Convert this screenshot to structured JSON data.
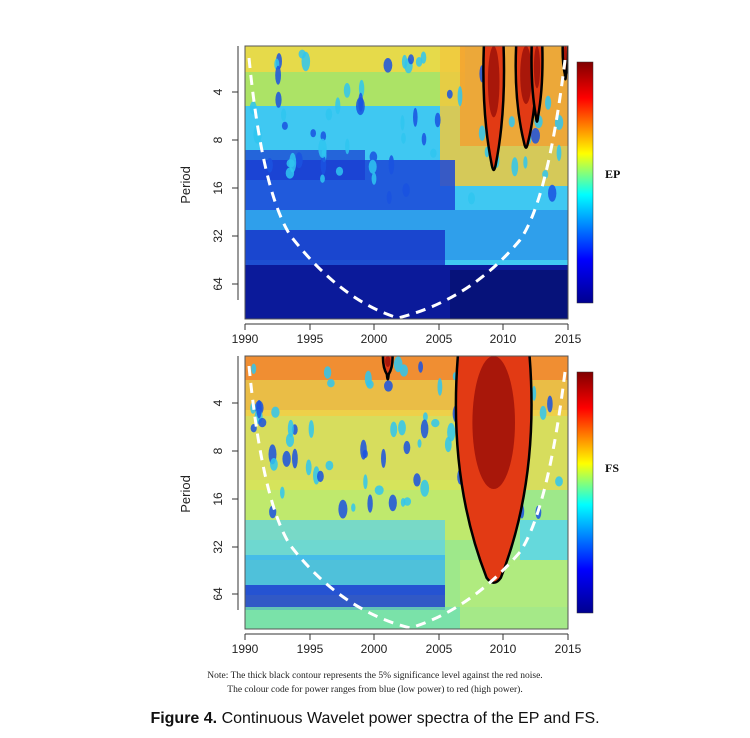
{
  "figure": {
    "caption_label": "Figure 4.",
    "caption_text": "Continuous Wavelet power spectra of the EP and FS.",
    "note_line1": "Note: The thick black contour represents the 5% significance level against the red noise.",
    "note_line2": "The colour code for power ranges from blue (low power) to red (high power)."
  },
  "chart_data": [
    {
      "type": "heatmap",
      "colorbar_label": "EP",
      "ylabel": "Period",
      "x_ticks": [
        "1990",
        "1995",
        "2000",
        "2005",
        "2010",
        "2015"
      ],
      "y_ticks": [
        "4",
        "8",
        "16",
        "32",
        "64"
      ],
      "xlim": [
        1990,
        2015
      ],
      "ylim_period": [
        2,
        100
      ],
      "y_scale": "log2",
      "colorscale": [
        "#00008f",
        "#0000ff",
        "#00ffff",
        "#ffff00",
        "#ff0000",
        "#800000"
      ],
      "cone_of_influence_style": "white dashed",
      "significance_contour": "black, 5% level",
      "high_power_regions": [
        {
          "x_start": 2008.5,
          "x_end": 2010,
          "period_min": 2,
          "period_max": 11
        },
        {
          "x_start": 2011,
          "x_end": 2012.5,
          "period_min": 2,
          "period_max": 8
        },
        {
          "x_start": 2012.2,
          "x_end": 2013,
          "period_min": 2,
          "period_max": 5.5
        },
        {
          "x_start": 2014.6,
          "x_end": 2015,
          "period_min": 2,
          "period_max": 3
        }
      ]
    },
    {
      "type": "heatmap",
      "colorbar_label": "FS",
      "ylabel": "Period",
      "x_ticks": [
        "1990",
        "1995",
        "2000",
        "2005",
        "2010",
        "2015"
      ],
      "y_ticks": [
        "4",
        "8",
        "16",
        "32",
        "64"
      ],
      "xlim": [
        1990,
        2015
      ],
      "ylim_period": [
        2,
        100
      ],
      "y_scale": "log2",
      "colorscale": [
        "#00008f",
        "#0000ff",
        "#00ffff",
        "#ffff00",
        "#ff0000",
        "#800000"
      ],
      "cone_of_influence_style": "white dashed",
      "significance_contour": "black, 5% level",
      "high_power_regions": [
        {
          "x_start": 2006.5,
          "x_end": 2012,
          "period_min": 2,
          "period_max": 48
        },
        {
          "x_start": 2000.7,
          "x_end": 2001.4,
          "period_min": 2,
          "period_max": 2.6
        }
      ]
    }
  ]
}
